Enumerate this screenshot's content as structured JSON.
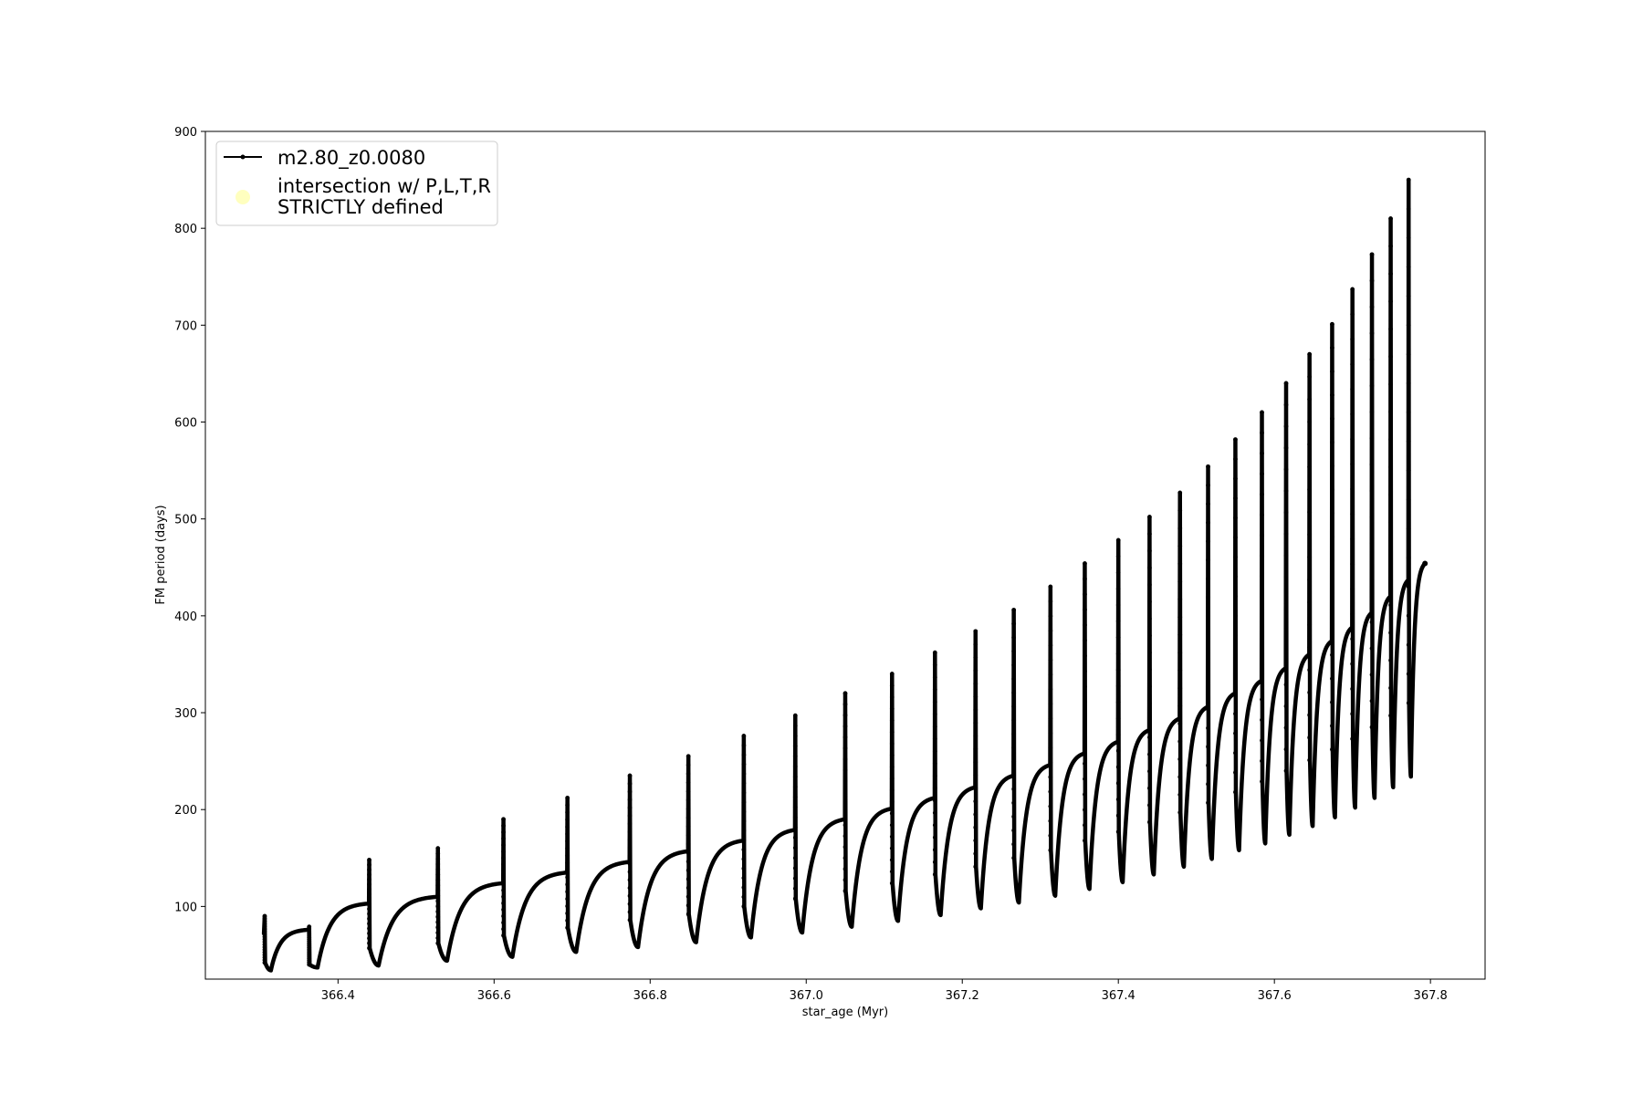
{
  "chart_data": {
    "type": "line",
    "title": "",
    "xlabel": "star_age (Myr)",
    "ylabel": "FM period (days)",
    "xlim": [
      366.23,
      367.87
    ],
    "ylim": [
      25,
      900
    ],
    "x_ticks": [
      366.4,
      366.6,
      366.8,
      367.0,
      367.2,
      367.4,
      367.6,
      367.8
    ],
    "x_tick_labels": [
      "366.4",
      "366.6",
      "366.8",
      "367.0",
      "367.2",
      "367.4",
      "367.6",
      "367.8"
    ],
    "y_ticks": [
      100,
      200,
      300,
      400,
      500,
      600,
      700,
      800,
      900
    ],
    "y_tick_labels": [
      "100",
      "200",
      "300",
      "400",
      "500",
      "600",
      "700",
      "800",
      "900"
    ],
    "grid": false,
    "legend_position": "top-left",
    "legend": {
      "line_label": "m2.80_z0.0080",
      "marker_label_line1": "intersection w/ P,L,T,R",
      "marker_label_line2": "STRICTLY defined",
      "marker_color": "#ffffbf"
    },
    "series": [
      {
        "name": "m2.80_z0.0080",
        "color": "#000000",
        "start_x": 366.305,
        "start_y": 72,
        "pulses": [
          {
            "x": 366.306,
            "peak": 90,
            "post": 42,
            "min": 34,
            "end": 76
          },
          {
            "x": 366.363,
            "peak": 79,
            "post": 40,
            "min": 37,
            "end": 103
          },
          {
            "x": 366.44,
            "peak": 148,
            "post": 57,
            "min": 39,
            "end": 110
          },
          {
            "x": 366.528,
            "peak": 160,
            "post": 62,
            "min": 44,
            "end": 124
          },
          {
            "x": 366.612,
            "peak": 190,
            "post": 70,
            "min": 48,
            "end": 135
          },
          {
            "x": 366.694,
            "peak": 212,
            "post": 78,
            "min": 53,
            "end": 146
          },
          {
            "x": 366.774,
            "peak": 235,
            "post": 86,
            "min": 58,
            "end": 157
          },
          {
            "x": 366.849,
            "peak": 255,
            "post": 92,
            "min": 63,
            "end": 168
          },
          {
            "x": 366.92,
            "peak": 276,
            "post": 100,
            "min": 68,
            "end": 179
          },
          {
            "x": 366.986,
            "peak": 297,
            "post": 108,
            "min": 73,
            "end": 190
          },
          {
            "x": 367.05,
            "peak": 320,
            "post": 116,
            "min": 79,
            "end": 201
          },
          {
            "x": 367.11,
            "peak": 340,
            "post": 124,
            "min": 85,
            "end": 212
          },
          {
            "x": 367.165,
            "peak": 362,
            "post": 133,
            "min": 91,
            "end": 223
          },
          {
            "x": 367.217,
            "peak": 384,
            "post": 141,
            "min": 98,
            "end": 235
          },
          {
            "x": 367.266,
            "peak": 406,
            "post": 150,
            "min": 104,
            "end": 246
          },
          {
            "x": 367.313,
            "peak": 430,
            "post": 158,
            "min": 111,
            "end": 258
          },
          {
            "x": 367.357,
            "peak": 454,
            "post": 168,
            "min": 118,
            "end": 270
          },
          {
            "x": 367.4,
            "peak": 478,
            "post": 177,
            "min": 125,
            "end": 282
          },
          {
            "x": 367.44,
            "peak": 502,
            "post": 187,
            "min": 133,
            "end": 294
          },
          {
            "x": 367.479,
            "peak": 527,
            "post": 197,
            "min": 141,
            "end": 306
          },
          {
            "x": 367.515,
            "peak": 554,
            "post": 207,
            "min": 149,
            "end": 320
          },
          {
            "x": 367.55,
            "peak": 582,
            "post": 218,
            "min": 158,
            "end": 333
          },
          {
            "x": 367.584,
            "peak": 610,
            "post": 229,
            "min": 165,
            "end": 346
          },
          {
            "x": 367.615,
            "peak": 640,
            "post": 240,
            "min": 174,
            "end": 360
          },
          {
            "x": 367.645,
            "peak": 670,
            "post": 251,
            "min": 183,
            "end": 374
          },
          {
            "x": 367.674,
            "peak": 701,
            "post": 262,
            "min": 192,
            "end": 388
          },
          {
            "x": 367.7,
            "peak": 737,
            "post": 273,
            "min": 202,
            "end": 403
          },
          {
            "x": 367.725,
            "peak": 773,
            "post": 285,
            "min": 212,
            "end": 420
          },
          {
            "x": 367.749,
            "peak": 810,
            "post": 297,
            "min": 223,
            "end": 437
          },
          {
            "x": 367.772,
            "peak": 850,
            "post": 310,
            "min": 234,
            "end": 454
          }
        ],
        "end_x": 367.793,
        "end_y": 454
      }
    ]
  }
}
